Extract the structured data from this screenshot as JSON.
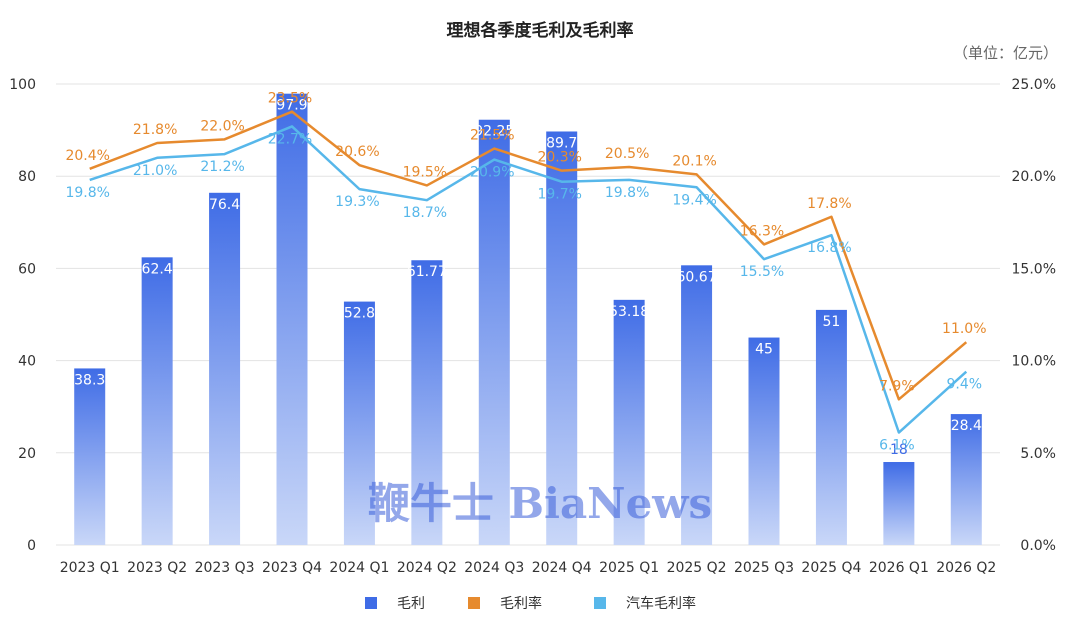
{
  "colors": {
    "bar_top": "#3f6ce6",
    "bar_bottom": "#c9d7f8",
    "gross_margin_line": "#e68a2e",
    "auto_margin_line": "#57b7ea",
    "grid": "#e3e3e3"
  },
  "watermark": "鞭牛士 BiaNews",
  "chart_data": {
    "type": "bar",
    "title": "理想各季度毛利及毛利率",
    "unit_label": "（单位：亿元）",
    "categories": [
      "2023 Q1",
      "2023 Q2",
      "2023 Q3",
      "2023 Q4",
      "2024 Q1",
      "2024 Q2",
      "2024 Q3",
      "2024 Q4",
      "2025 Q1",
      "2025 Q2",
      "2025 Q3",
      "2025 Q4",
      "2026 Q1",
      "2026 Q2"
    ],
    "y_left": {
      "min": 0,
      "max": 100,
      "ticks": [
        "0",
        "20",
        "40",
        "60",
        "80",
        "100"
      ]
    },
    "y_right": {
      "min": 0,
      "max": 25,
      "ticks": [
        "0.0%",
        "5.0%",
        "10.0%",
        "15.0%",
        "20.0%",
        "25.0%"
      ]
    },
    "grid": true,
    "legend_position": "bottom",
    "series": [
      {
        "name": "毛利",
        "kind": "bar",
        "axis": "left",
        "values": [
          38.3,
          62.4,
          76.4,
          97.9,
          52.8,
          61.77,
          92.25,
          89.7,
          53.18,
          60.67,
          45,
          51,
          18,
          28.4
        ],
        "labels": [
          "38.3",
          "62.4",
          "76.4",
          "97.9",
          "52.8",
          "61.77",
          "92.25",
          "89.7",
          "53.18",
          "60.67",
          "45",
          "51",
          "18",
          "28.4"
        ]
      },
      {
        "name": "毛利率",
        "kind": "line",
        "axis": "right",
        "values": [
          20.4,
          21.8,
          22.0,
          23.5,
          20.6,
          19.5,
          21.5,
          20.3,
          20.5,
          20.1,
          16.3,
          17.8,
          7.9,
          11.0
        ],
        "labels": [
          "20.4%",
          "21.8%",
          "22.0%",
          "23.5%",
          "20.6%",
          "19.5%",
          "21.5%",
          "20.3%",
          "20.5%",
          "20.1%",
          "16.3%",
          "17.8%",
          "7.9%",
          "11.0%"
        ]
      },
      {
        "name": "汽车毛利率",
        "kind": "line",
        "axis": "right",
        "values": [
          19.8,
          21.0,
          21.2,
          22.7,
          19.3,
          18.7,
          20.9,
          19.7,
          19.8,
          19.4,
          15.5,
          16.8,
          6.1,
          9.4
        ],
        "labels": [
          "19.8%",
          "21.0%",
          "21.2%",
          "22.7%",
          "19.3%",
          "18.7%",
          "20.9%",
          "19.7%",
          "19.8%",
          "19.4%",
          "15.5%",
          "16.8%",
          "6.1%",
          "9.4%"
        ]
      }
    ]
  }
}
